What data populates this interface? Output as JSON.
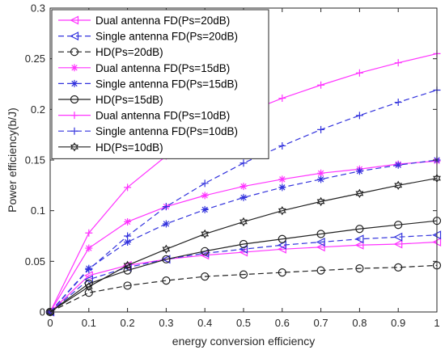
{
  "chart_data": {
    "type": "line",
    "xlabel": "energy conversion efficiency",
    "ylabel": "Power efficiency(b/J)",
    "xlim": [
      0,
      1
    ],
    "ylim": [
      0,
      0.3
    ],
    "x": [
      0,
      0.1,
      0.2,
      0.3,
      0.4,
      0.5,
      0.6,
      0.7,
      0.8,
      0.9,
      1
    ],
    "xticks": [
      "0",
      "0.1",
      "0.2",
      "0.3",
      "0.4",
      "0.5",
      "0.6",
      "0.7",
      "0.8",
      "0.9",
      "1"
    ],
    "yticks": [
      "0",
      "0.05",
      "0.1",
      "0.15",
      "0.2",
      "0.25",
      "0.3"
    ],
    "grid": false,
    "legend_position": "top-left",
    "series": [
      {
        "name": "Dual antenna FD(Ps=20dB)",
        "color": "#ff33ff",
        "dash": "solid",
        "marker": "triangle-left",
        "values": [
          0,
          0.036,
          0.046,
          0.052,
          0.056,
          0.059,
          0.062,
          0.064,
          0.066,
          0.067,
          0.069
        ]
      },
      {
        "name": "Single antenna FD(Ps=20dB)",
        "color": "#3333dd",
        "dash": "dashed",
        "marker": "triangle-left",
        "values": [
          0,
          0.032,
          0.044,
          0.052,
          0.058,
          0.062,
          0.066,
          0.069,
          0.072,
          0.074,
          0.076
        ]
      },
      {
        "name": "HD(Ps=20dB)",
        "color": "#222222",
        "dash": "dashed",
        "marker": "circle",
        "values": [
          0,
          0.019,
          0.026,
          0.031,
          0.035,
          0.037,
          0.039,
          0.041,
          0.043,
          0.044,
          0.046
        ]
      },
      {
        "name": "Dual antenna FD(Ps=15dB)",
        "color": "#ff33ff",
        "dash": "solid",
        "marker": "asterisk",
        "values": [
          0,
          0.063,
          0.089,
          0.104,
          0.115,
          0.124,
          0.131,
          0.137,
          0.141,
          0.146,
          0.149
        ]
      },
      {
        "name": "Single antenna FD(Ps=15dB)",
        "color": "#3333dd",
        "dash": "dashed",
        "marker": "asterisk",
        "values": [
          0,
          0.043,
          0.069,
          0.087,
          0.101,
          0.113,
          0.123,
          0.131,
          0.139,
          0.145,
          0.15
        ]
      },
      {
        "name": "HD(Ps=15dB)",
        "color": "#222222",
        "dash": "solid",
        "marker": "circle",
        "values": [
          0,
          0.028,
          0.041,
          0.052,
          0.06,
          0.067,
          0.072,
          0.077,
          0.082,
          0.086,
          0.09
        ]
      },
      {
        "name": "Dual antenna FD(Ps=10dB)",
        "color": "#ff33ff",
        "dash": "solid",
        "marker": "plus",
        "values": [
          0,
          0.078,
          0.123,
          0.154,
          0.177,
          0.196,
          0.211,
          0.224,
          0.236,
          0.246,
          0.255
        ]
      },
      {
        "name": "Single antenna FD(Ps=10dB)",
        "color": "#3333dd",
        "dash": "dashed",
        "marker": "plus",
        "values": [
          0,
          0.042,
          0.075,
          0.104,
          0.127,
          0.147,
          0.164,
          0.18,
          0.194,
          0.207,
          0.219
        ]
      },
      {
        "name": "HD(Ps=10dB)",
        "color": "#222222",
        "dash": "solid",
        "marker": "hexagram",
        "values": [
          0,
          0.025,
          0.046,
          0.062,
          0.077,
          0.089,
          0.1,
          0.109,
          0.117,
          0.125,
          0.132
        ]
      }
    ]
  }
}
